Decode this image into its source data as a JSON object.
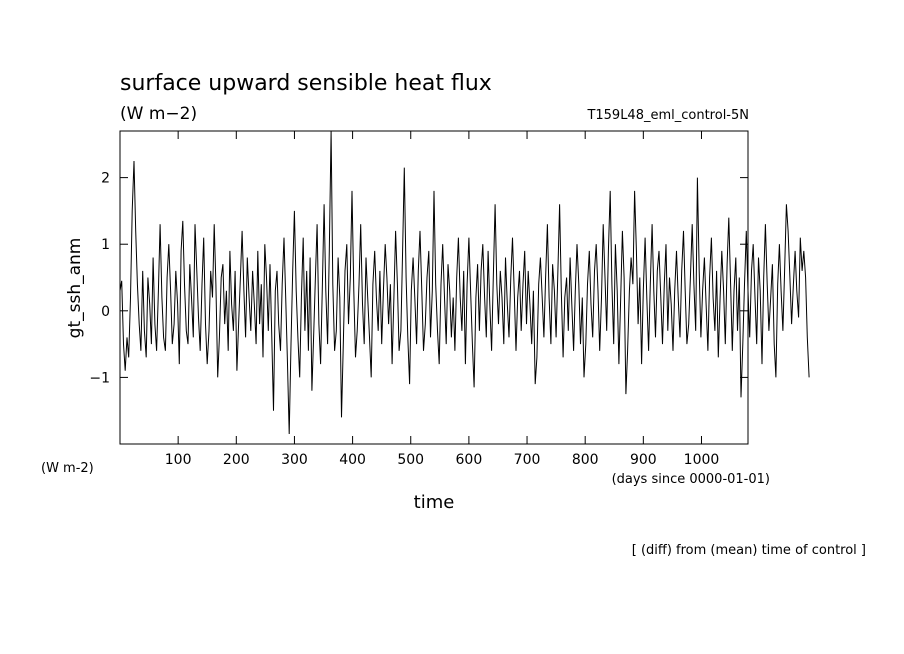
{
  "chart_data": {
    "type": "line",
    "title": "surface upward sensible heat flux",
    "units_label": "(W m−2)",
    "run_label": "T159L48_eml_control-5N",
    "ylabel": "gt_ssh_anm",
    "y_units": "(W m-2)",
    "xlabel": "time",
    "x_units": "(days since 0000-01-01)",
    "note": "[ (diff) from (mean) time of control ]",
    "xlim": [
      0,
      1080
    ],
    "ylim": [
      -2,
      2.7
    ],
    "x_ticks": [
      100,
      200,
      300,
      400,
      500,
      600,
      700,
      800,
      900,
      1000
    ],
    "y_ticks": [
      -1,
      0,
      1,
      2
    ],
    "x_start": 0,
    "x_step": 3,
    "series": [
      {
        "values": [
          0.3,
          0.45,
          -0.5,
          -0.9,
          -0.4,
          -0.7,
          0.2,
          1.5,
          2.25,
          1.2,
          0.4,
          -0.2,
          -0.6,
          0.6,
          -0.3,
          -0.7,
          0.5,
          0.1,
          -0.5,
          0.8,
          -0.2,
          -0.6,
          0.3,
          1.3,
          0.2,
          -0.4,
          -0.6,
          0.5,
          1.0,
          0.3,
          -0.5,
          -0.2,
          0.6,
          0.1,
          -0.8,
          0.9,
          1.35,
          0.4,
          -0.3,
          -0.5,
          0.7,
          0.2,
          -0.4,
          1.3,
          0.6,
          -0.1,
          -0.6,
          0.4,
          1.1,
          -0.2,
          -0.8,
          -0.3,
          0.6,
          0.2,
          1.3,
          0.4,
          -1.0,
          -0.4,
          0.5,
          0.7,
          -0.2,
          0.3,
          -0.6,
          0.9,
          0.1,
          -0.3,
          0.6,
          -0.9,
          -0.2,
          0.5,
          1.2,
          0.3,
          -0.4,
          0.8,
          0.2,
          -0.3,
          0.6,
          0.1,
          -0.5,
          0.9,
          -0.2,
          0.4,
          -0.7,
          1.0,
          0.5,
          -0.3,
          0.7,
          -0.4,
          -1.5,
          0.3,
          0.6,
          -0.2,
          -0.6,
          0.4,
          1.1,
          0.2,
          -0.8,
          -1.85,
          -0.5,
          0.6,
          1.5,
          0.3,
          -0.4,
          -1.0,
          0.2,
          1.1,
          -0.3,
          0.6,
          -0.6,
          0.8,
          -1.2,
          -0.4,
          0.5,
          1.3,
          -0.2,
          -0.8,
          0.4,
          1.6,
          0.3,
          -0.5,
          0.9,
          2.7,
          0.4,
          -0.6,
          -0.3,
          0.8,
          0.2,
          -1.6,
          -0.5,
          0.6,
          1.0,
          -0.2,
          0.5,
          1.8,
          0.3,
          -0.7,
          -0.3,
          0.4,
          1.3,
          0.1,
          -0.5,
          0.8,
          0.2,
          -0.4,
          -1.0,
          0.4,
          0.9,
          0.2,
          -0.3,
          0.6,
          -0.5,
          0.3,
          1.0,
          0.5,
          -0.2,
          0.4,
          -0.8,
          0.2,
          1.2,
          0.4,
          -0.6,
          -0.3,
          0.9,
          2.15,
          0.5,
          -0.4,
          -1.1,
          0.3,
          0.8,
          0.2,
          -0.5,
          0.6,
          1.2,
          0.3,
          -0.6,
          -0.2,
          0.5,
          0.9,
          -0.4,
          0.3,
          1.8,
          0.4,
          -0.3,
          -0.8,
          0.4,
          1.0,
          0.2,
          -0.5,
          0.7,
          0.3,
          -0.4,
          0.2,
          -0.6,
          0.5,
          1.1,
          0.2,
          -0.3,
          0.6,
          -0.8,
          0.4,
          1.1,
          0.3,
          -0.5,
          -1.15,
          0.2,
          0.7,
          -0.3,
          0.6,
          1.0,
          0.2,
          -0.4,
          0.9,
          0.1,
          -0.6,
          0.5,
          1.6,
          0.4,
          -0.2,
          0.6,
          0.2,
          -0.5,
          0.8,
          0.1,
          -0.4,
          0.5,
          1.1,
          0.3,
          -0.6,
          0.2,
          0.6,
          -0.3,
          0.4,
          0.9,
          -0.2,
          0.6,
          0.1,
          -0.5,
          0.3,
          -1.1,
          -0.7,
          0.4,
          0.8,
          0.2,
          -0.4,
          0.5,
          1.3,
          0.2,
          -0.5,
          0.7,
          0.3,
          -0.4,
          0.6,
          1.6,
          0.3,
          -0.7,
          0.2,
          0.5,
          -0.3,
          0.8,
          0.1,
          -0.6,
          0.3,
          1.0,
          0.4,
          -0.5,
          0.2,
          -1.0,
          -0.5,
          0.4,
          0.9,
          0.1,
          -0.4,
          0.6,
          1.0,
          0.3,
          -0.6,
          0.2,
          1.3,
          0.5,
          -0.3,
          0.9,
          1.8,
          0.4,
          -0.5,
          1.0,
          0.3,
          -0.8,
          0.2,
          1.2,
          0.5,
          -1.25,
          -0.6,
          0.3,
          0.8,
          0.4,
          1.8,
          0.9,
          -0.2,
          0.5,
          -0.8,
          0.3,
          1.1,
          0.2,
          -0.6,
          0.4,
          1.3,
          0.3,
          -0.4,
          0.6,
          0.9,
          0.2,
          -0.5,
          0.4,
          1.0,
          -0.3,
          0.5,
          0.1,
          -0.6,
          0.3,
          0.9,
          0.2,
          -0.4,
          0.6,
          1.2,
          0.3,
          -0.5,
          -0.2,
          0.5,
          1.3,
          0.4,
          -0.3,
          2.0,
          0.6,
          -0.4,
          0.3,
          0.8,
          0.1,
          -0.6,
          0.5,
          1.1,
          0.2,
          -0.3,
          0.6,
          -0.7,
          0.2,
          0.9,
          0.3,
          -0.5,
          0.7,
          1.4,
          0.4,
          -0.6,
          0.3,
          0.8,
          -0.3,
          0.5,
          -1.3,
          -0.5,
          0.4,
          1.2,
          0.3,
          -0.4,
          0.6,
          1.0,
          0.2,
          -0.5,
          0.8,
          0.3,
          -0.8,
          0.5,
          1.3,
          0.4,
          -0.3,
          0.2,
          0.7,
          -0.5,
          -1.0,
          0.4,
          1.0,
          0.3,
          -0.3,
          0.6,
          1.6,
          1.2,
          0.5,
          -0.2,
          0.4,
          0.9,
          0.3,
          -0.1,
          1.1,
          0.6,
          0.9,
          0.5,
          -0.4,
          -1.0
        ]
      }
    ]
  }
}
